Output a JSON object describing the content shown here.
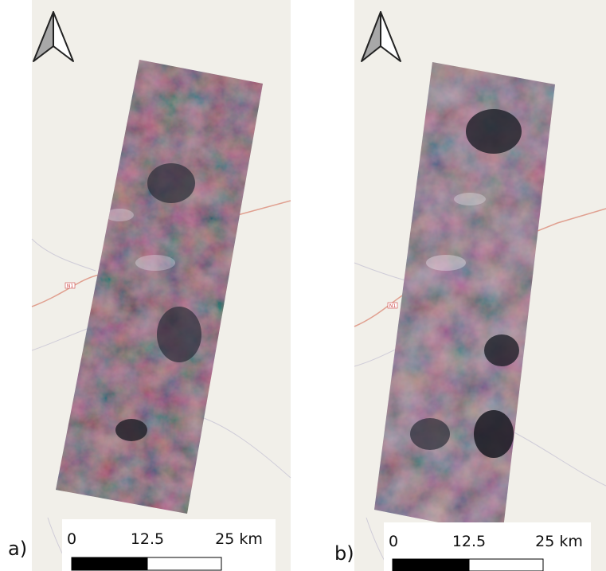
{
  "panels": [
    {
      "label": "a)",
      "road_label": "N1",
      "scale": {
        "ticks": [
          "0",
          "12.5",
          "25 km"
        ]
      }
    },
    {
      "label": "b)",
      "road_label": "N1",
      "scale": {
        "ticks": [
          "0",
          "12.5",
          "25 km"
        ]
      }
    }
  ]
}
